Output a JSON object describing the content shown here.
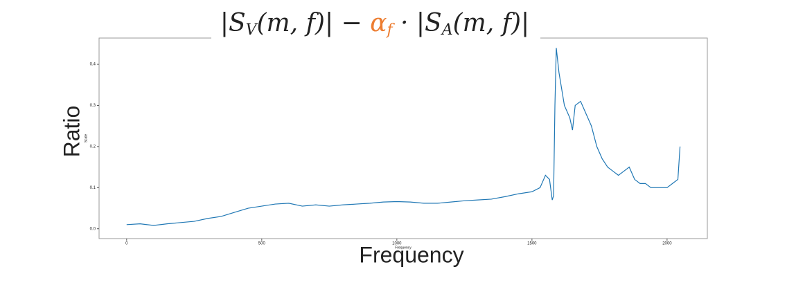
{
  "chart_data": {
    "type": "line",
    "title_parts": [
      {
        "text": "|S"
      },
      {
        "text": "V",
        "sub": true
      },
      {
        "text": "(m, f)| − "
      },
      {
        "text": "α",
        "color": "#ed7d31"
      },
      {
        "text": "f",
        "sub": true,
        "color": "#ed7d31"
      },
      {
        "text": " · |S"
      },
      {
        "text": "A",
        "sub": true
      },
      {
        "text": "(m, f)|"
      }
    ],
    "slide_y_label": "Ratio",
    "slide_x_label": "Frequency",
    "x_label": "Frequency",
    "y_label": "Scale",
    "xlim": [
      -102,
      2149
    ],
    "ylim": [
      -0.024,
      0.464
    ],
    "xticks": [
      0,
      500,
      1000,
      1500,
      2000
    ],
    "yticks": [
      {
        "value": 0,
        "label": "0.0"
      },
      0.1,
      0.2,
      0.3,
      0.4
    ],
    "grid": false,
    "series": [
      {
        "name": "Scale",
        "color": "#1f77b4",
        "x": [
          0,
          50,
          100,
          150,
          200,
          250,
          300,
          350,
          400,
          450,
          500,
          550,
          600,
          650,
          700,
          750,
          800,
          850,
          900,
          950,
          1000,
          1050,
          1100,
          1150,
          1200,
          1250,
          1300,
          1350,
          1400,
          1450,
          1500,
          1530,
          1550,
          1565,
          1575,
          1580,
          1585,
          1590,
          1600,
          1620,
          1640,
          1650,
          1660,
          1680,
          1700,
          1720,
          1740,
          1760,
          1780,
          1800,
          1820,
          1840,
          1860,
          1880,
          1900,
          1920,
          1940,
          1960,
          1980,
          2000,
          2020,
          2040,
          2048
        ],
        "values": [
          0.01,
          0.012,
          0.008,
          0.012,
          0.015,
          0.018,
          0.025,
          0.03,
          0.04,
          0.05,
          0.055,
          0.06,
          0.062,
          0.055,
          0.058,
          0.055,
          0.058,
          0.06,
          0.062,
          0.065,
          0.066,
          0.065,
          0.062,
          0.062,
          0.065,
          0.068,
          0.07,
          0.072,
          0.078,
          0.085,
          0.09,
          0.1,
          0.13,
          0.12,
          0.07,
          0.08,
          0.3,
          0.44,
          0.38,
          0.3,
          0.27,
          0.24,
          0.3,
          0.31,
          0.28,
          0.25,
          0.2,
          0.17,
          0.15,
          0.14,
          0.13,
          0.14,
          0.15,
          0.12,
          0.11,
          0.11,
          0.1,
          0.1,
          0.1,
          0.1,
          0.11,
          0.12,
          0.2
        ]
      }
    ]
  }
}
